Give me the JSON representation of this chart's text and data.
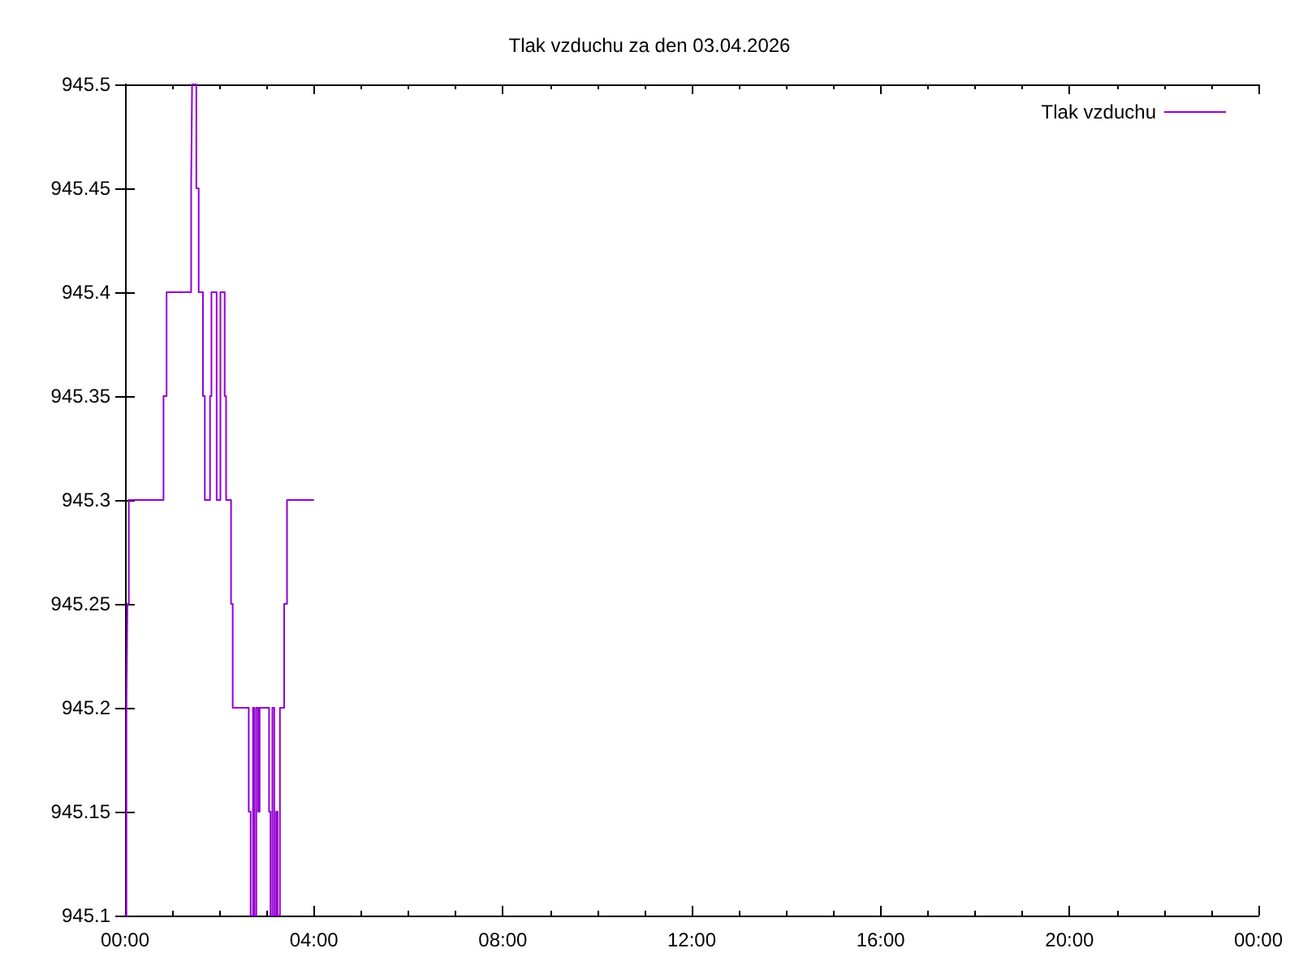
{
  "chart_data": {
    "type": "step",
    "title": "Tlak vzduchu za den 03.04.2026",
    "series": [
      {
        "name": "Tlak vzduchu",
        "color": "#9400d3",
        "x": [
          0,
          0.03,
          0.05,
          0.08,
          0.815,
          0.88,
          1.4,
          1.42,
          1.51,
          1.56,
          1.65,
          1.69,
          1.8,
          1.83,
          1.94,
          2.02,
          2.11,
          2.14,
          2.245,
          2.28,
          2.62,
          2.66,
          2.71,
          2.74,
          2.78,
          2.82,
          2.85,
          3.05,
          3.08,
          3.12,
          3.16,
          3.2,
          3.23,
          3.28,
          3.37,
          3.43,
          3.99
        ],
        "values": [
          945.1,
          945.2,
          945.25,
          945.3,
          945.35,
          945.4,
          945.45,
          945.5,
          945.45,
          945.4,
          945.35,
          945.3,
          945.35,
          945.4,
          945.3,
          945.4,
          945.35,
          945.3,
          945.25,
          945.2,
          945.15,
          945.1,
          945.2,
          945.1,
          945.2,
          945.15,
          945.2,
          945.15,
          945.1,
          945.2,
          945.1,
          945.15,
          945.1,
          945.2,
          945.25,
          945.3,
          945.3
        ]
      }
    ],
    "xlim": [
      0,
      24
    ],
    "xticks": [
      {
        "value": 0,
        "label": "00:00"
      },
      {
        "value": 1,
        "label": null
      },
      {
        "value": 2,
        "label": null
      },
      {
        "value": 3,
        "label": null
      },
      {
        "value": 4,
        "label": "04:00"
      },
      {
        "value": 5,
        "label": null
      },
      {
        "value": 6,
        "label": null
      },
      {
        "value": 7,
        "label": null
      },
      {
        "value": 8,
        "label": "08:00"
      },
      {
        "value": 9,
        "label": null
      },
      {
        "value": 10,
        "label": null
      },
      {
        "value": 11,
        "label": null
      },
      {
        "value": 12,
        "label": "12:00"
      },
      {
        "value": 13,
        "label": null
      },
      {
        "value": 14,
        "label": null
      },
      {
        "value": 15,
        "label": null
      },
      {
        "value": 16,
        "label": "16:00"
      },
      {
        "value": 17,
        "label": null
      },
      {
        "value": 18,
        "label": null
      },
      {
        "value": 19,
        "label": null
      },
      {
        "value": 20,
        "label": "20:00"
      },
      {
        "value": 21,
        "label": null
      },
      {
        "value": 22,
        "label": null
      },
      {
        "value": 23,
        "label": null
      },
      {
        "value": 24,
        "label": "00:00"
      }
    ],
    "ylim": [
      945.1,
      945.5
    ],
    "yticks": [
      945.1,
      945.15,
      945.2,
      945.25,
      945.3,
      945.35,
      945.4,
      945.45,
      945.5
    ],
    "legend": "top right",
    "marker": "none",
    "line_style": "solid"
  }
}
